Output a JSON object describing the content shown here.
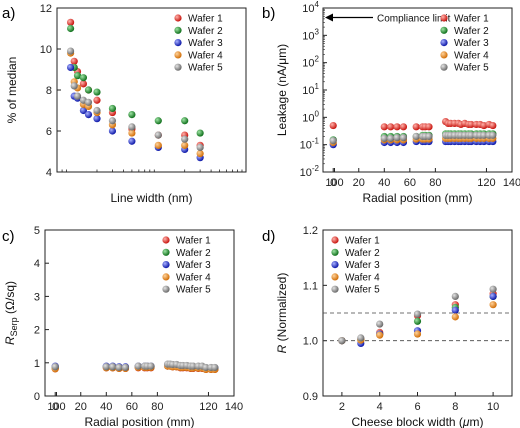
{
  "chart_data": [
    {
      "panel_label": "a)",
      "type": "scatter",
      "xlabel": "Line width (nm)",
      "ylabel": "% of median",
      "xscale": "log",
      "xlim": [
        70,
        10000
      ],
      "ylim": [
        4,
        12
      ],
      "xticks": [
        "100",
        "1000",
        "10000"
      ],
      "yticks": [
        "4",
        "6",
        "8",
        "10",
        "12"
      ],
      "legend_position": "top-right",
      "x": [
        100,
        110,
        120,
        140,
        160,
        200,
        300,
        500,
        1000,
        2000,
        3000
      ],
      "series": [
        {
          "name": "Wafer 1",
          "color": "#e8231f",
          "values": [
            11.3,
            9.4,
            8.9,
            8.3,
            8.0,
            7.5,
            6.9,
            6.1,
            5.8,
            5.8,
            5.3
          ]
        },
        {
          "name": "Wafer 2",
          "color": "#1e8c2a",
          "values": [
            11.0,
            9.1,
            8.7,
            8.6,
            8.0,
            7.9,
            7.1,
            6.8,
            6.5,
            6.5,
            5.9
          ]
        },
        {
          "name": "Wafer 3",
          "color": "#1a2ad6",
          "values": [
            9.1,
            7.7,
            7.6,
            7.0,
            6.8,
            6.6,
            6.0,
            5.5,
            5.2,
            5.1,
            4.7
          ]
        },
        {
          "name": "Wafer 4",
          "color": "#f28a1d",
          "values": [
            9.8,
            8.4,
            8.1,
            7.3,
            7.2,
            6.9,
            6.3,
            5.9,
            5.3,
            5.3,
            4.9
          ]
        },
        {
          "name": "Wafer 5",
          "color": "#8d8d8d",
          "values": [
            9.9,
            8.2,
            7.7,
            7.5,
            7.4,
            7.0,
            6.5,
            6.2,
            5.8,
            5.6,
            5.2
          ]
        }
      ]
    },
    {
      "panel_label": "b)",
      "type": "scatter",
      "xlabel": "Radial position (mm)",
      "ylabel": "Leakage (nA/μm)",
      "yscale": "log",
      "xlim": [
        -8,
        140
      ],
      "ylim": [
        0.01,
        10000
      ],
      "xticks": [
        "0",
        "20",
        "40",
        "60",
        "80",
        "100",
        "120",
        "140"
      ],
      "yticks": [
        "10-2",
        "10-1",
        "100",
        "101",
        "102",
        "103",
        "104"
      ],
      "legend_position": "top-right",
      "annotation": "Compliance limit",
      "annotation_y": 4500,
      "x": [
        0,
        40,
        45,
        50,
        55,
        65,
        70,
        72,
        75,
        88,
        90,
        92,
        95,
        98,
        100,
        103,
        106,
        108,
        112,
        115,
        118,
        122,
        125
      ],
      "series": [
        {
          "name": "Wafer 1",
          "color": "#e8231f",
          "values": [
            0.5,
            0.45,
            0.45,
            0.45,
            0.45,
            0.45,
            0.45,
            0.45,
            0.45,
            0.7,
            0.6,
            0.6,
            0.6,
            0.6,
            0.55,
            0.6,
            0.55,
            0.55,
            0.55,
            0.55,
            0.5,
            0.55,
            0.5
          ]
        },
        {
          "name": "Wafer 2",
          "color": "#1e8c2a",
          "values": [
            0.15,
            0.2,
            0.2,
            0.2,
            0.2,
            0.2,
            0.22,
            0.22,
            0.22,
            0.25,
            0.25,
            0.25,
            0.25,
            0.25,
            0.25,
            0.25,
            0.25,
            0.25,
            0.25,
            0.25,
            0.25,
            0.25,
            0.25
          ]
        },
        {
          "name": "Wafer 3",
          "color": "#1a2ad6",
          "values": [
            0.1,
            0.12,
            0.12,
            0.12,
            0.12,
            0.13,
            0.13,
            0.13,
            0.13,
            0.13,
            0.13,
            0.13,
            0.13,
            0.13,
            0.13,
            0.13,
            0.13,
            0.13,
            0.13,
            0.13,
            0.13,
            0.13,
            0.13
          ]
        },
        {
          "name": "Wafer 4",
          "color": "#f28a1d",
          "values": [
            0.12,
            0.15,
            0.15,
            0.15,
            0.15,
            0.16,
            0.16,
            0.16,
            0.16,
            0.17,
            0.17,
            0.17,
            0.17,
            0.17,
            0.17,
            0.17,
            0.17,
            0.17,
            0.17,
            0.17,
            0.17,
            0.17,
            0.17
          ]
        },
        {
          "name": "Wafer 5",
          "color": "#8d8d8d",
          "values": [
            0.14,
            0.17,
            0.17,
            0.18,
            0.18,
            0.2,
            0.2,
            0.2,
            0.2,
            0.22,
            0.22,
            0.22,
            0.22,
            0.22,
            0.22,
            0.22,
            0.22,
            0.22,
            0.22,
            0.22,
            0.22,
            0.22,
            0.22
          ]
        }
      ]
    },
    {
      "panel_label": "c)",
      "type": "scatter",
      "xlabel": "Radial position (mm)",
      "ylabel_main": "R",
      "ylabel_sub": "Serp",
      "ylabel_rest": " (Ω/sq)",
      "xlim": [
        -8,
        140
      ],
      "ylim": [
        0,
        5
      ],
      "xticks": [
        "0",
        "20",
        "40",
        "60",
        "80",
        "100",
        "120",
        "140"
      ],
      "yticks": [
        "0",
        "1",
        "2",
        "3",
        "4",
        "5"
      ],
      "legend_position": "top-right",
      "x": [
        0,
        40,
        45,
        50,
        55,
        65,
        70,
        72,
        75,
        88,
        90,
        92,
        95,
        98,
        100,
        103,
        106,
        108,
        112,
        115,
        118,
        122,
        125
      ],
      "series": [
        {
          "name": "Wafer 1",
          "color": "#e8231f",
          "values": [
            0.82,
            0.85,
            0.85,
            0.83,
            0.83,
            0.85,
            0.85,
            0.85,
            0.85,
            0.9,
            0.9,
            0.88,
            0.88,
            0.85,
            0.85,
            0.85,
            0.83,
            0.83,
            0.83,
            0.83,
            0.8,
            0.8,
            0.8
          ]
        },
        {
          "name": "Wafer 2",
          "color": "#1e8c2a",
          "values": [
            0.85,
            0.88,
            0.88,
            0.85,
            0.85,
            0.88,
            0.88,
            0.88,
            0.88,
            0.92,
            0.92,
            0.9,
            0.9,
            0.88,
            0.88,
            0.88,
            0.85,
            0.85,
            0.85,
            0.85,
            0.82,
            0.82,
            0.82
          ]
        },
        {
          "name": "Wafer 3",
          "color": "#1a2ad6",
          "values": [
            0.9,
            0.9,
            0.9,
            0.88,
            0.88,
            0.9,
            0.9,
            0.9,
            0.9,
            0.95,
            0.95,
            0.93,
            0.93,
            0.9,
            0.9,
            0.9,
            0.88,
            0.88,
            0.88,
            0.88,
            0.85,
            0.85,
            0.85
          ]
        },
        {
          "name": "Wafer 4",
          "color": "#f28a1d",
          "values": [
            0.82,
            0.85,
            0.85,
            0.83,
            0.83,
            0.86,
            0.86,
            0.86,
            0.86,
            0.9,
            0.9,
            0.88,
            0.88,
            0.86,
            0.86,
            0.86,
            0.84,
            0.84,
            0.84,
            0.84,
            0.8,
            0.8,
            0.8
          ]
        },
        {
          "name": "Wafer 5",
          "color": "#8d8d8d",
          "values": [
            0.88,
            0.88,
            0.88,
            0.86,
            0.86,
            0.9,
            0.9,
            0.9,
            0.9,
            0.96,
            0.96,
            0.95,
            0.95,
            0.92,
            0.92,
            0.92,
            0.9,
            0.9,
            0.9,
            0.9,
            0.86,
            0.86,
            0.86
          ]
        }
      ]
    },
    {
      "panel_label": "d)",
      "type": "scatter",
      "xlabel_pre": "Cheese block width (",
      "xlabel_mu": "μ",
      "xlabel_post": "m)",
      "ylabel_main": "R",
      "ylabel_rest": " (Normalized)",
      "xlim": [
        1,
        11
      ],
      "ylim": [
        0.9,
        1.2
      ],
      "xticks": [
        "2",
        "4",
        "6",
        "8",
        "10"
      ],
      "yticks": [
        "0.9",
        "1.0",
        "1.1",
        "1.2"
      ],
      "legend_position": "top-left",
      "reference_lines": [
        1.0,
        1.05
      ],
      "x": [
        2,
        3,
        4,
        6,
        8,
        10
      ],
      "series": [
        {
          "name": "Wafer 1",
          "color": "#e8231f",
          "values": [
            1.0,
            1.003,
            1.015,
            1.045,
            1.065,
            1.085
          ]
        },
        {
          "name": "Wafer 2",
          "color": "#1e8c2a",
          "values": [
            1.0,
            1.001,
            1.012,
            1.035,
            1.06,
            1.08
          ]
        },
        {
          "name": "Wafer 3",
          "color": "#1a2ad6",
          "values": [
            1.0,
            0.995,
            1.012,
            1.018,
            1.055,
            1.08
          ]
        },
        {
          "name": "Wafer 4",
          "color": "#f28a1d",
          "values": [
            1.0,
            1.001,
            1.01,
            1.012,
            1.043,
            1.065
          ]
        },
        {
          "name": "Wafer 5",
          "color": "#8d8d8d",
          "values": [
            1.0,
            1.005,
            1.03,
            1.048,
            1.08,
            1.093
          ]
        }
      ]
    }
  ]
}
